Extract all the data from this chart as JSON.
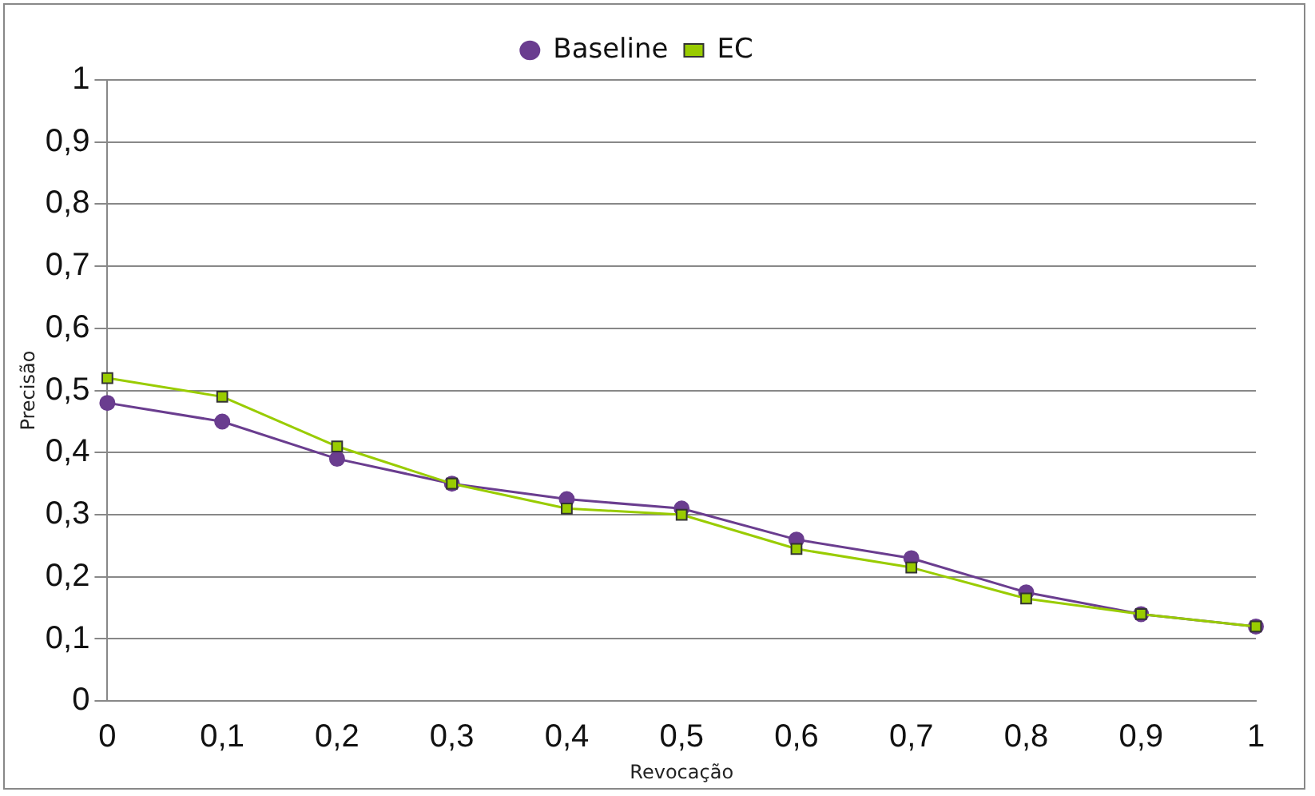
{
  "chart_data": {
    "type": "line",
    "xlabel": "Revocação",
    "ylabel": "Precisão",
    "x": [
      0,
      0.1,
      0.2,
      0.3,
      0.4,
      0.5,
      0.6,
      0.7,
      0.8,
      0.9,
      1
    ],
    "series": [
      {
        "name": "Baseline",
        "color": "#6a3d8f",
        "marker": "circle",
        "values": [
          0.48,
          0.45,
          0.39,
          0.35,
          0.325,
          0.31,
          0.26,
          0.23,
          0.175,
          0.14,
          0.12
        ]
      },
      {
        "name": "EC",
        "color": "#99cc00",
        "marker": "square",
        "values": [
          0.52,
          0.49,
          0.41,
          0.35,
          0.31,
          0.3,
          0.245,
          0.215,
          0.165,
          0.14,
          0.12
        ]
      }
    ],
    "xlim": [
      0,
      1
    ],
    "ylim": [
      0,
      1
    ],
    "xticks": [
      0,
      {
        "value": 0.1,
        "label": "0,1"
      },
      {
        "value": 0.2,
        "label": "0,2"
      },
      {
        "value": 0.3,
        "label": "0,3"
      },
      {
        "value": 0.4,
        "label": "0,4"
      },
      {
        "value": 0.5,
        "label": "0,5"
      },
      {
        "value": 0.6,
        "label": "0,6"
      },
      {
        "value": 0.7,
        "label": "0,7"
      },
      {
        "value": 0.8,
        "label": "0,8"
      },
      {
        "value": 0.9,
        "label": "0,9"
      },
      1
    ],
    "yticks": [
      0,
      {
        "value": 0.1,
        "label": "0,1"
      },
      {
        "value": 0.2,
        "label": "0,2"
      },
      {
        "value": 0.3,
        "label": "0,3"
      },
      {
        "value": 0.4,
        "label": "0,4"
      },
      {
        "value": 0.5,
        "label": "0,5"
      },
      {
        "value": 0.6,
        "label": "0,6"
      },
      {
        "value": 0.7,
        "label": "0,7"
      },
      {
        "value": 0.8,
        "label": "0,8"
      },
      {
        "value": 0.9,
        "label": "0,9"
      },
      1
    ],
    "grid": "y",
    "legend": "top"
  }
}
